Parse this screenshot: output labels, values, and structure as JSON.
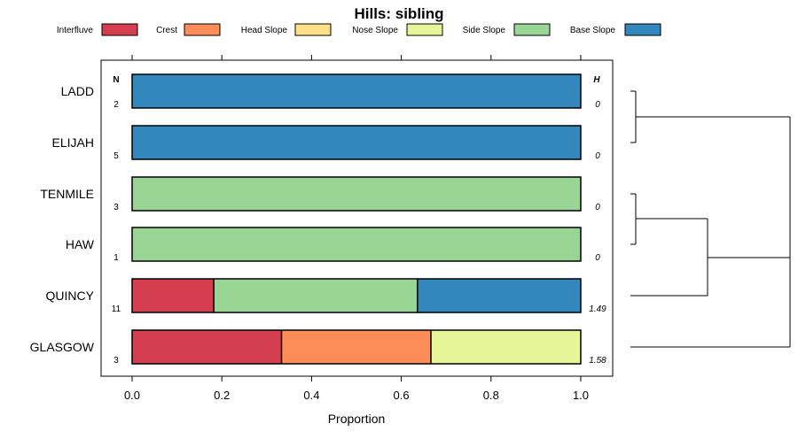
{
  "chart_data": {
    "type": "bar",
    "orientation": "horizontal",
    "stacked": true,
    "title": "Hills: sibling",
    "xlabel": "Proportion",
    "ylabel": "",
    "xlim": [
      0,
      1
    ],
    "x_ticks": [
      "0.0",
      "0.2",
      "0.4",
      "0.6",
      "0.8",
      "1.0"
    ],
    "legend_position": "top",
    "n_header": "N",
    "h_header": "H",
    "series": [
      {
        "name": "Interfluve",
        "color": "#D53E4F"
      },
      {
        "name": "Crest",
        "color": "#FC8D59"
      },
      {
        "name": "Head Slope",
        "color": "#FEE08B"
      },
      {
        "name": "Nose Slope",
        "color": "#E6F598"
      },
      {
        "name": "Side Slope",
        "color": "#99D594"
      },
      {
        "name": "Base Slope",
        "color": "#3288BD"
      }
    ],
    "categories": [
      {
        "label": "LADD",
        "n": "2",
        "h": "0",
        "values": [
          0,
          0,
          0,
          0,
          0,
          1
        ]
      },
      {
        "label": "ELIJAH",
        "n": "5",
        "h": "0",
        "values": [
          0,
          0,
          0,
          0,
          0,
          1
        ]
      },
      {
        "label": "TENMILE",
        "n": "3",
        "h": "0",
        "values": [
          0,
          0,
          0,
          0,
          1,
          0
        ]
      },
      {
        "label": "HAW",
        "n": "1",
        "h": "0",
        "values": [
          0,
          0,
          0,
          0,
          1,
          0
        ]
      },
      {
        "label": "QUINCY",
        "n": "11",
        "h": "1.49",
        "values": [
          0.182,
          0,
          0,
          0,
          0.454,
          0.364
        ]
      },
      {
        "label": "GLASGOW",
        "n": "3",
        "h": "1.58",
        "values": [
          0.333,
          0.333,
          0,
          0.334,
          0,
          0
        ]
      }
    ],
    "dendrogram": {
      "description": "hierarchical clustering of categories",
      "merges": [
        [
          "LADD",
          "ELIJAH"
        ],
        [
          "TENMILE",
          "HAW"
        ],
        [
          "TENMILE+HAW",
          "QUINCY"
        ],
        [
          "LADD+ELIJAH",
          "TENMILE+HAW+QUINCY"
        ],
        [
          "root",
          "GLASGOW"
        ]
      ]
    }
  }
}
